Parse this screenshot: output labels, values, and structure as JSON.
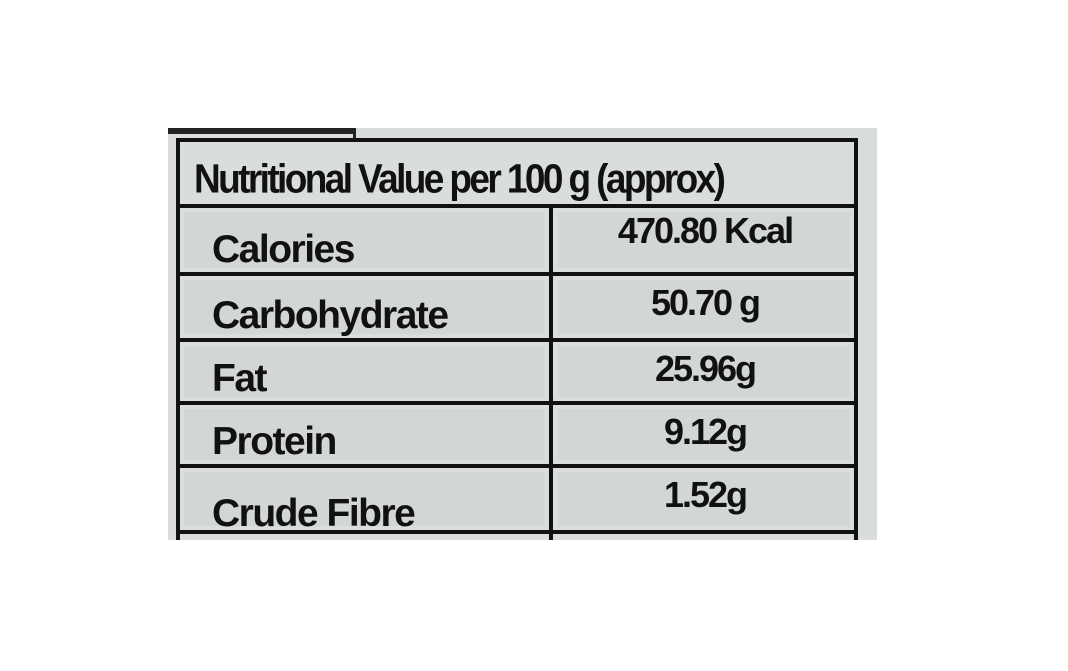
{
  "label": {
    "title": "Nutritional Value per 100 g (approx)",
    "rows": [
      {
        "nutrient": "Calories",
        "value": "470.80 Kcal"
      },
      {
        "nutrient": "Carbohydrate",
        "value": "50.70 g"
      },
      {
        "nutrient": "Fat",
        "value": "25.96g"
      },
      {
        "nutrient": "Protein",
        "value": "9.12g"
      },
      {
        "nutrient": "Crude Fibre",
        "value": "1.52g"
      }
    ]
  },
  "colors": {
    "background": "#d9dedb",
    "ink": "#111111"
  }
}
